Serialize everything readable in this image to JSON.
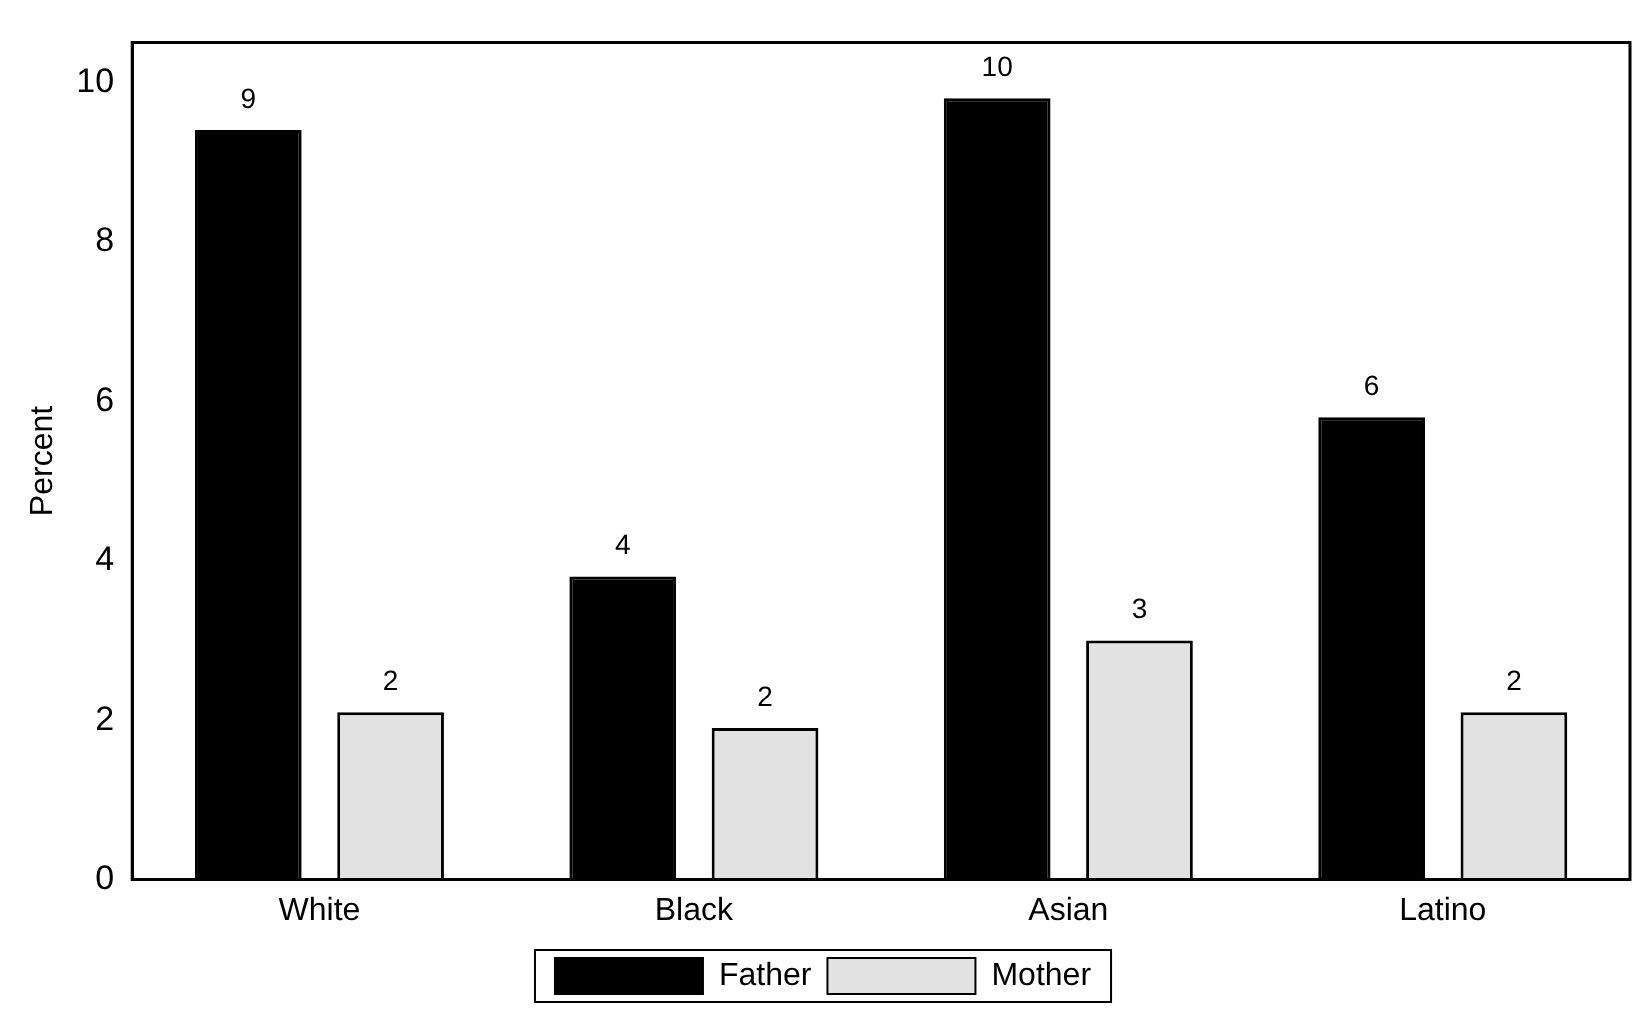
{
  "chart_data": {
    "type": "bar",
    "ylabel": "Percent",
    "categories": [
      "White",
      "Black",
      "Asian",
      "Latino"
    ],
    "series": [
      {
        "name": "Father",
        "color": "#000000",
        "values": [
          9.4,
          3.8,
          9.8,
          5.8
        ],
        "value_labels": [
          "9",
          "4",
          "10",
          "6"
        ]
      },
      {
        "name": "Mother",
        "color": "#e2e2e2",
        "values": [
          2.1,
          1.9,
          3.0,
          2.1
        ],
        "value_labels": [
          "2",
          "2",
          "3",
          "2"
        ]
      }
    ],
    "ylim": [
      0,
      10.5
    ],
    "yticks": [
      0,
      2,
      4,
      6,
      8,
      10
    ],
    "grid": false,
    "legend": "bottom"
  }
}
